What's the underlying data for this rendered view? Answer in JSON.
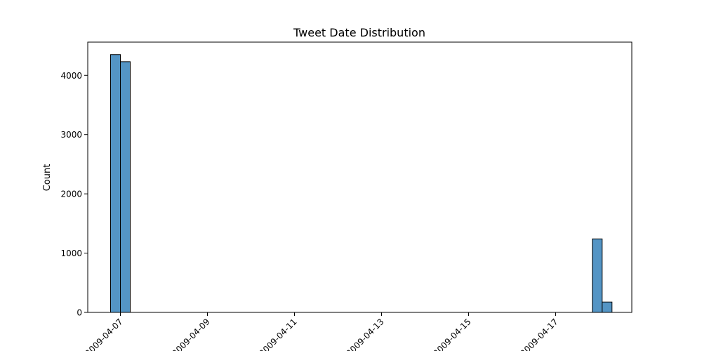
{
  "chart_data": {
    "type": "bar",
    "title": "Tweet Date Distribution",
    "xlabel": "",
    "ylabel": "Count",
    "xlim": [
      "2009-04-06 06:00",
      "2009-04-18 18:00"
    ],
    "ylim": [
      0,
      4560
    ],
    "bar_color": "#5495c5",
    "edge_color": "#000000",
    "grid": false,
    "bins": [
      {
        "start": "2009-04-06 18:35",
        "end": "2009-04-07 00:00",
        "count": 4350
      },
      {
        "start": "2009-04-07 00:00",
        "end": "2009-04-07 05:25",
        "count": 4230
      },
      {
        "start": "2009-04-17 20:15",
        "end": "2009-04-18 01:40",
        "count": 1240
      },
      {
        "start": "2009-04-18 01:40",
        "end": "2009-04-18 07:05",
        "count": 175
      }
    ],
    "x_ticks": [
      {
        "date": "2009-04-07",
        "label": "2009-04-07"
      },
      {
        "date": "2009-04-09",
        "label": "2009-04-09"
      },
      {
        "date": "2009-04-11",
        "label": "2009-04-11"
      },
      {
        "date": "2009-04-13",
        "label": "2009-04-13"
      },
      {
        "date": "2009-04-15",
        "label": "2009-04-15"
      },
      {
        "date": "2009-04-17",
        "label": "2009-04-17"
      }
    ],
    "y_ticks": [
      {
        "value": 0,
        "label": "0"
      },
      {
        "value": 1000,
        "label": "1000"
      },
      {
        "value": 2000,
        "label": "2000"
      },
      {
        "value": 3000,
        "label": "3000"
      },
      {
        "value": 4000,
        "label": "4000"
      }
    ]
  }
}
